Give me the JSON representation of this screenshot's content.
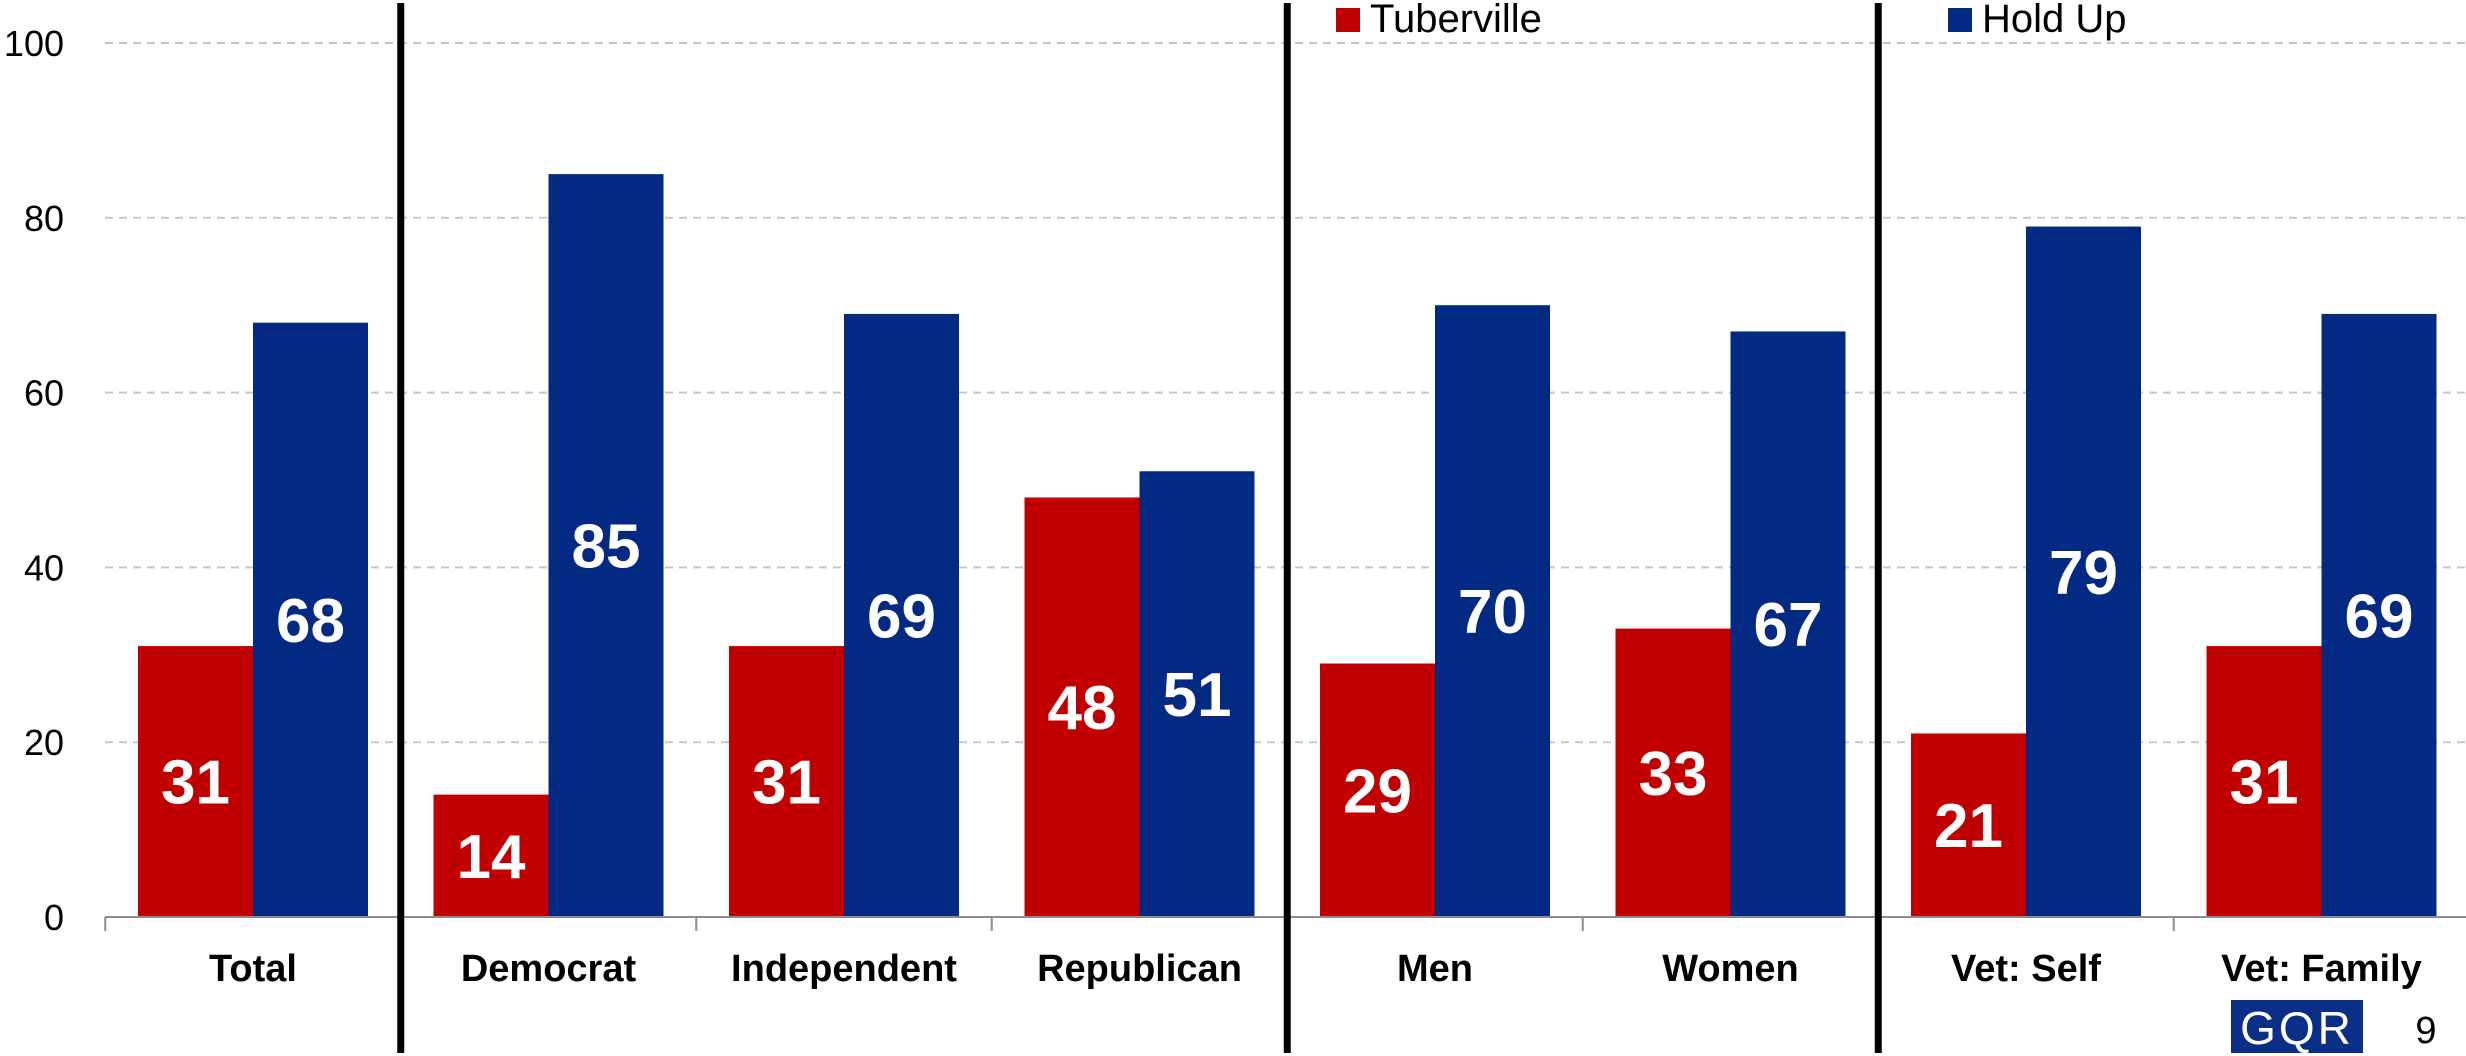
{
  "chart_data": {
    "type": "bar",
    "categories": [
      "Total",
      "Democrat",
      "Independent",
      "Republican",
      "Men",
      "Women",
      "Vet: Self",
      "Vet: Family"
    ],
    "series": [
      {
        "name": "Tuberville",
        "color": "#c00000",
        "values": [
          31,
          14,
          31,
          48,
          29,
          33,
          21,
          31
        ]
      },
      {
        "name": "Hold Up",
        "color": "#032a82",
        "values": [
          68,
          85,
          69,
          51,
          70,
          67,
          79,
          69
        ]
      }
    ],
    "data_labels": {
      "Tuberville": [
        "31",
        "14",
        "31",
        "48",
        "29",
        "33",
        "21",
        "31"
      ],
      "Hold Up": [
        "68",
        "85",
        "69",
        "51",
        "70",
        "67",
        "79",
        "69"
      ]
    },
    "ylim": [
      0,
      100
    ],
    "yticks": [
      "0",
      "20",
      "40",
      "60",
      "80",
      "100"
    ],
    "grid": true,
    "legend_position": "top",
    "group_separators_after": [
      "Total",
      "Republican",
      "Women"
    ]
  },
  "logo_text": "GQR",
  "page_number": "9"
}
